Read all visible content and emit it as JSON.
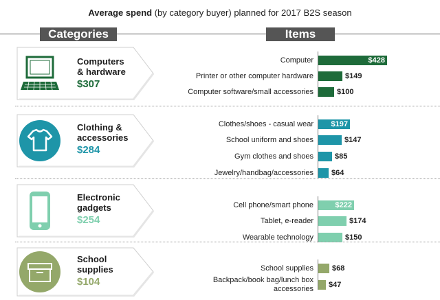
{
  "header": {
    "title_bold": "Average spend",
    "title_rest": " (by category buyer) planned for 2017 B2S season",
    "categories_label": "Categories",
    "items_label": "Items"
  },
  "colors": {
    "computers": "#1e6b3a",
    "clothing": "#1e95a8",
    "electronics": "#7fcfae",
    "school": "#94a86a",
    "header_bg": "#555555"
  },
  "chart_data": {
    "type": "bar",
    "orientation": "horizontal",
    "title": "Average spend (by category buyer) planned for 2017 B2S season",
    "value_prefix": "$",
    "groups": [
      {
        "category": "Computers & hardware",
        "category_lines": [
          "Computers",
          "& hardware"
        ],
        "total": 307,
        "total_label": "$307",
        "icon": "laptop-icon",
        "color": "#1e6b3a",
        "items": [
          {
            "label": "Computer",
            "value": 428,
            "value_label": "$428"
          },
          {
            "label": "Printer or other computer hardware",
            "value": 149,
            "value_label": "$149"
          },
          {
            "label": "Computer software/small accessories",
            "value": 100,
            "value_label": "$100"
          }
        ]
      },
      {
        "category": "Clothing & accessories",
        "category_lines": [
          "Clothing &",
          "accessories"
        ],
        "total": 284,
        "total_label": "$284",
        "icon": "tshirt-icon",
        "color": "#1e95a8",
        "items": [
          {
            "label": "Clothes/shoes - casual wear",
            "value": 197,
            "value_label": "$197"
          },
          {
            "label": "School uniform and shoes",
            "value": 147,
            "value_label": "$147"
          },
          {
            "label": "Gym clothes and shoes",
            "value": 85,
            "value_label": "$85"
          },
          {
            "label": "Jewelry/handbag/accessories",
            "value": 64,
            "value_label": "$64"
          }
        ]
      },
      {
        "category": "Electronic gadgets",
        "category_lines": [
          "Electronic",
          "gadgets"
        ],
        "total": 254,
        "total_label": "$254",
        "icon": "phone-icon",
        "color": "#7fcfae",
        "items": [
          {
            "label": "Cell phone/smart phone",
            "value": 222,
            "value_label": "$222"
          },
          {
            "label": "Tablet, e-reader",
            "value": 174,
            "value_label": "$174"
          },
          {
            "label": "Wearable technology",
            "value": 150,
            "value_label": "$150"
          }
        ]
      },
      {
        "category": "School supplies",
        "category_lines": [
          "School",
          "supplies"
        ],
        "total": 104,
        "total_label": "$104",
        "icon": "box-icon",
        "color": "#94a86a",
        "items": [
          {
            "label": "School supplies",
            "value": 68,
            "value_label": "$68"
          },
          {
            "label": "Backpack/book bag/lunch box accessories",
            "label_lines": [
              "Backpack/book bag/lunch box",
              "accessories"
            ],
            "value": 47,
            "value_label": "$47"
          }
        ]
      }
    ]
  }
}
